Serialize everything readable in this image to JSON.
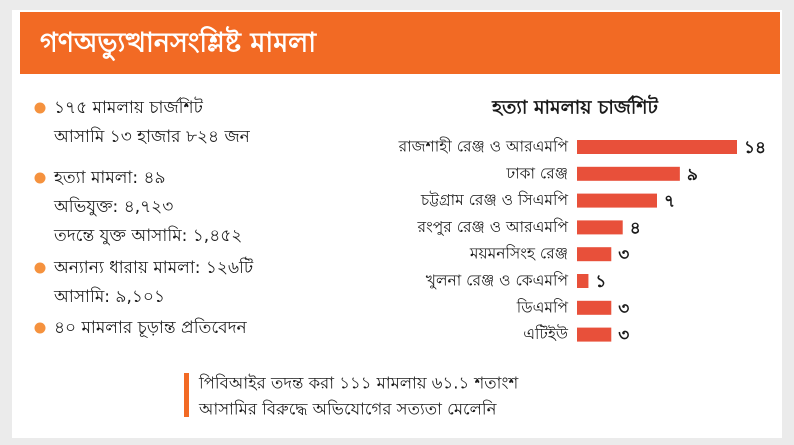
{
  "header": {
    "title": "গণঅভ্যুত্থানসংশ্লিষ্ট মামলা"
  },
  "summary": {
    "bullets": [
      {
        "lines": [
          "১৭৫ মামলায় চার্জশিট",
          "আসামি ১৩ হাজার ৮২৪ জন"
        ]
      },
      {
        "lines": [
          "হত্যা মামলা: ৪৯",
          "অভিযুক্ত: ৪,৭২৩",
          "তদন্তে যুক্ত আসামি: ১,৪৫২"
        ]
      },
      {
        "lines": [
          "অন্যান্য ধারায় মামলা: ১২৬টি",
          "আসামি: ৯,১০১"
        ]
      },
      {
        "lines": [
          "৪০ মামলার চূড়ান্ত প্রতিবেদন"
        ]
      }
    ]
  },
  "chart_data": {
    "type": "bar",
    "orientation": "horizontal",
    "title": "হত্যা মামলায় চার্জশিট",
    "categories": [
      "রাজশাহী রেঞ্জ ও আরএমপি",
      "ঢাকা রেঞ্জ",
      "চট্টগ্রাম রেঞ্জ ও সিএমপি",
      "রংপুর রেঞ্জ ও আরএমপি",
      "ময়মনসিংহ রেঞ্জ",
      "খুলনা রেঞ্জ ও কেএমপি",
      "ডিএমপি",
      "এটিইউ"
    ],
    "values": [
      14,
      9,
      7,
      4,
      3,
      1,
      3,
      3
    ],
    "value_labels": [
      "১৪",
      "৯",
      "৭",
      "৪",
      "৩",
      "১",
      "৩",
      "৩"
    ],
    "color": "#e8503a"
  },
  "footer": {
    "lines": [
      "পিবিআইর তদন্ত করা ১১১ মামলায় ৬১.১ শতাংশ",
      "আসামির বিরুদ্ধে অভিযোগের সত্যতা মেলেনি"
    ]
  }
}
